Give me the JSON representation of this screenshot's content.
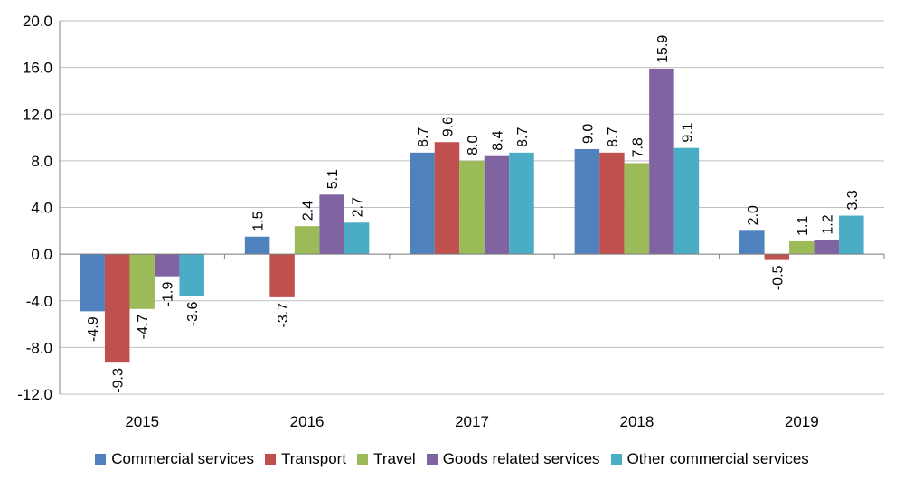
{
  "chart_data": {
    "type": "bar",
    "title": "",
    "xlabel": "",
    "ylabel": "",
    "categories": [
      "2015",
      "2016",
      "2017",
      "2018",
      "2019"
    ],
    "ylim": [
      -12,
      20
    ],
    "yticks": [
      -12,
      -8,
      -4,
      0,
      4,
      8,
      12,
      16,
      20
    ],
    "ytick_labels": [
      "-12.0",
      "-8.0",
      "-4.0",
      "0.0",
      "4.0",
      "8.0",
      "12.0",
      "16.0",
      "20.0"
    ],
    "grid": true,
    "legend_position": "bottom",
    "series": [
      {
        "name": "Commercial services",
        "color": "#4F81BD",
        "values": [
          -4.9,
          1.5,
          8.7,
          9.0,
          2.0
        ],
        "labels": [
          "-4.9",
          "1.5",
          "8.7",
          "9.0",
          "2.0"
        ]
      },
      {
        "name": "Transport",
        "color": "#C0504D",
        "values": [
          -9.3,
          -3.7,
          9.6,
          8.7,
          -0.5
        ],
        "labels": [
          "-9.3",
          "-3.7",
          "9.6",
          "8.7",
          "-0.5"
        ]
      },
      {
        "name": "Travel",
        "color": "#9BBB59",
        "values": [
          -4.7,
          2.4,
          8.0,
          7.8,
          1.1
        ],
        "labels": [
          "-4.7",
          "2.4",
          "8.0",
          "7.8",
          "1.1"
        ]
      },
      {
        "name": "Goods related services",
        "color": "#8064A2",
        "values": [
          -1.9,
          5.1,
          8.4,
          15.9,
          1.2
        ],
        "labels": [
          "-1.9",
          "5.1",
          "8.4",
          "15.9",
          "1.2"
        ]
      },
      {
        "name": "Other commercial services",
        "color": "#4BACC6",
        "values": [
          -3.6,
          2.7,
          8.7,
          9.1,
          3.3
        ],
        "labels": [
          "-3.6",
          "2.7",
          "8.7",
          "9.1",
          "3.3"
        ]
      }
    ]
  }
}
